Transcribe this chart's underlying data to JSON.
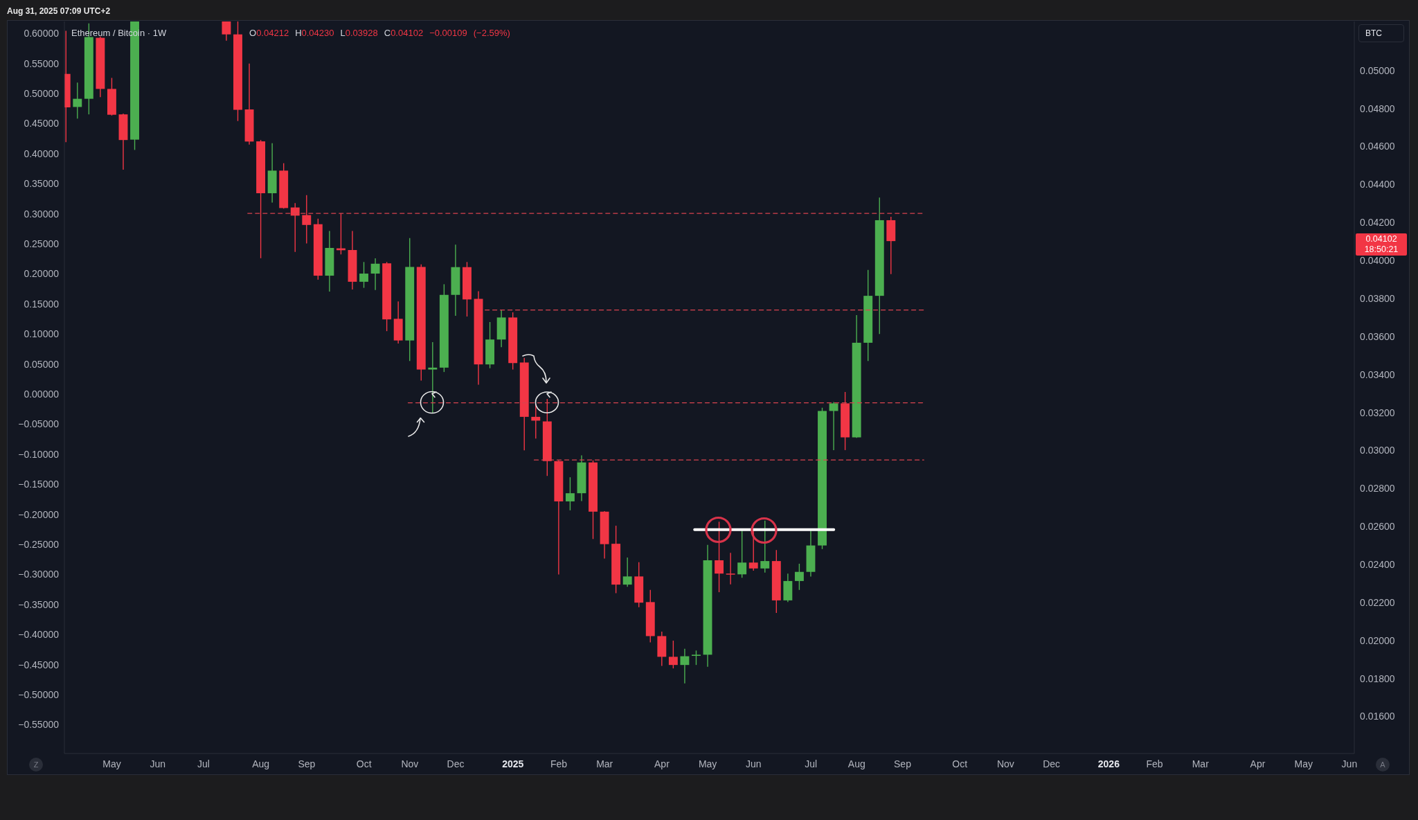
{
  "chart_data": {
    "type": "candlestick",
    "title": "Ethereum / Bitcoin · 1W",
    "y2label": "BTC",
    "annotations": [
      "Aug 31, 2025 07:09 UTC+2",
      "O0.04212 H0.04230 L0.03928 C0.04102 −0.00109 (−2.59%)",
      "0.04102",
      "18:50:21",
      "Z",
      "A"
    ],
    "xlim": [
      "2024-04-07",
      "2026-06-04"
    ],
    "xticks": [
      {
        "value": "2024-05-06",
        "label": "May"
      },
      {
        "value": "2024-06-03",
        "label": "Jun"
      },
      {
        "value": "2024-07-01",
        "label": "Jul"
      },
      {
        "value": "2024-08-05",
        "label": "Aug"
      },
      {
        "value": "2024-09-02",
        "label": "Sep"
      },
      {
        "value": "2024-10-07",
        "label": "Oct"
      },
      {
        "value": "2024-11-04",
        "label": "Nov"
      },
      {
        "value": "2024-12-02",
        "label": "Dec"
      },
      {
        "value": "2025-01-06",
        "label": "2025"
      },
      {
        "value": "2025-02-03",
        "label": "Feb"
      },
      {
        "value": "2025-03-03",
        "label": "Mar"
      },
      {
        "value": "2025-04-07",
        "label": "Apr"
      },
      {
        "value": "2025-05-05",
        "label": "May"
      },
      {
        "value": "2025-06-02",
        "label": "Jun"
      },
      {
        "value": "2025-07-07",
        "label": "Jul"
      },
      {
        "value": "2025-08-04",
        "label": "Aug"
      },
      {
        "value": "2025-09-01",
        "label": "Sep"
      },
      {
        "value": "2025-10-06",
        "label": "Oct"
      },
      {
        "value": "2025-11-03",
        "label": "Nov"
      },
      {
        "value": "2025-12-01",
        "label": "Dec"
      },
      {
        "value": "2026-01-05",
        "label": "2026"
      },
      {
        "value": "2026-02-02",
        "label": "Feb"
      },
      {
        "value": "2026-03-02",
        "label": "Mar"
      },
      {
        "value": "2026-04-06",
        "label": "Apr"
      },
      {
        "value": "2026-05-04",
        "label": "May"
      },
      {
        "value": "2026-06-01",
        "label": "Jun"
      }
    ],
    "ylim": [
      -0.598,
      0.62
    ],
    "yticks": [
      {
        "value": -0.55,
        "label": "−0.55000"
      },
      {
        "value": -0.5,
        "label": "−0.50000"
      },
      {
        "value": -0.45,
        "label": "−0.45000"
      },
      {
        "value": -0.4,
        "label": "−0.40000"
      },
      {
        "value": -0.35,
        "label": "−0.35000"
      },
      {
        "value": -0.3,
        "label": "−0.30000"
      },
      {
        "value": -0.25,
        "label": "−0.25000"
      },
      {
        "value": -0.2,
        "label": "−0.20000"
      },
      {
        "value": -0.15,
        "label": "−0.15000"
      },
      {
        "value": -0.1,
        "label": "−0.10000"
      },
      {
        "value": -0.05,
        "label": "−0.05000"
      },
      {
        "value": 0,
        "label": "0.00000"
      },
      {
        "value": 0.05,
        "label": "0.05000"
      },
      {
        "value": 0.1,
        "label": "0.10000"
      },
      {
        "value": 0.15,
        "label": "0.15000"
      },
      {
        "value": 0.2,
        "label": "0.20000"
      },
      {
        "value": 0.25,
        "label": "0.25000"
      },
      {
        "value": 0.3,
        "label": "0.30000"
      },
      {
        "value": 0.35,
        "label": "0.35000"
      },
      {
        "value": 0.4,
        "label": "0.40000"
      },
      {
        "value": 0.45,
        "label": "0.45000"
      },
      {
        "value": 0.5,
        "label": "0.50000"
      },
      {
        "value": 0.55,
        "label": "0.55000"
      },
      {
        "value": 0.6,
        "label": "0.60000"
      }
    ],
    "y2lim": [
      0.01405,
      0.05258
    ],
    "y2ticks": [
      {
        "value": 0.016,
        "label": "0.01600"
      },
      {
        "value": 0.018,
        "label": "0.01800"
      },
      {
        "value": 0.02,
        "label": "0.02000"
      },
      {
        "value": 0.022,
        "label": "0.02200"
      },
      {
        "value": 0.024,
        "label": "0.02400"
      },
      {
        "value": 0.026,
        "label": "0.02600"
      },
      {
        "value": 0.028,
        "label": "0.02800"
      },
      {
        "value": 0.03,
        "label": "0.03000"
      },
      {
        "value": 0.032,
        "label": "0.03200"
      },
      {
        "value": 0.034,
        "label": "0.03400"
      },
      {
        "value": 0.036,
        "label": "0.03600"
      },
      {
        "value": 0.038,
        "label": "0.03800"
      },
      {
        "value": 0.04,
        "label": "0.04000"
      },
      {
        "value": 0.042,
        "label": "0.04200"
      },
      {
        "value": 0.044,
        "label": "0.04400"
      },
      {
        "value": 0.046,
        "label": "0.04600"
      },
      {
        "value": 0.048,
        "label": "0.04800"
      },
      {
        "value": 0.05,
        "label": "0.05000"
      }
    ],
    "series": [
      {
        "type": "line",
        "axis": "y2",
        "x": [
          "2024-07-28",
          "2025-09-14"
        ],
        "values": [
          0.04248,
          0.04248
        ],
        "color": "#d9434f",
        "line_style": "dashed"
      },
      {
        "type": "line",
        "axis": "y2",
        "x": [
          "2024-12-20",
          "2025-09-14"
        ],
        "values": [
          0.03739,
          0.03739
        ],
        "color": "#d9434f",
        "line_style": "dashed"
      },
      {
        "type": "line",
        "axis": "y2",
        "x": [
          "2024-11-03",
          "2025-09-14"
        ],
        "values": [
          0.03251,
          0.03251
        ],
        "color": "#d9434f",
        "line_style": "dashed"
      },
      {
        "type": "line",
        "axis": "y2",
        "x": [
          "2025-01-19",
          "2025-09-14"
        ],
        "values": [
          0.0295,
          0.0295
        ],
        "color": "#d9434f",
        "line_style": "dashed"
      },
      {
        "type": "line",
        "axis": "y2",
        "x": [
          "2025-04-27",
          "2025-07-21"
        ],
        "values": [
          0.02583,
          0.02583
        ],
        "color": "#ffffff",
        "line_style": "solid"
      },
      {
        "axis": "y2",
        "x": [
          "2024-04-08",
          "2024-04-15",
          "2024-04-22",
          "2024-04-29",
          "2024-05-06",
          "2024-05-13",
          "2024-05-20",
          "2024-07-15",
          "2024-07-22",
          "2024-07-29",
          "2024-08-05",
          "2024-08-12",
          "2024-08-19",
          "2024-08-26",
          "2024-09-02",
          "2024-09-09",
          "2024-09-16",
          "2024-09-23",
          "2024-09-30",
          "2024-10-07",
          "2024-10-14",
          "2024-10-21",
          "2024-10-28",
          "2024-11-04",
          "2024-11-11",
          "2024-11-18",
          "2024-11-25",
          "2024-12-02",
          "2024-12-09",
          "2024-12-16",
          "2024-12-23",
          "2024-12-30",
          "2025-01-06",
          "2025-01-13",
          "2025-01-20",
          "2025-01-27",
          "2025-02-03",
          "2025-02-10",
          "2025-02-17",
          "2025-02-24",
          "2025-03-03",
          "2025-03-10",
          "2025-03-17",
          "2025-03-24",
          "2025-03-31",
          "2025-04-07",
          "2025-04-14",
          "2025-04-21",
          "2025-04-28",
          "2025-05-05",
          "2025-05-12",
          "2025-05-19",
          "2025-05-26",
          "2025-06-02",
          "2025-06-09",
          "2025-06-16",
          "2025-06-23",
          "2025-06-30",
          "2025-07-07",
          "2025-07-14",
          "2025-07-21",
          "2025-07-28",
          "2025-08-04",
          "2025-08-11",
          "2025-08-18",
          "2025-08-25"
        ],
        "ohlc": [
          [
            0.04982,
            0.05209,
            0.04623,
            0.04806
          ],
          [
            0.04808,
            0.04936,
            0.04747,
            0.04851
          ],
          [
            0.04851,
            0.05248,
            0.04769,
            0.05176
          ],
          [
            0.05172,
            0.05179,
            0.0486,
            0.04903
          ],
          [
            0.04903,
            0.04961,
            0.04763,
            0.04767
          ],
          [
            0.04769,
            0.04773,
            0.04478,
            0.04634
          ],
          [
            0.04636,
            0.05258,
            0.04582,
            0.05258
          ],
          [
            0.05258,
            0.05258,
            0.05157,
            0.0519
          ],
          [
            0.0519,
            0.05258,
            0.04734,
            0.04793
          ],
          [
            0.04795,
            0.05037,
            0.0461,
            0.04626
          ],
          [
            0.04627,
            0.04634,
            0.04012,
            0.04354
          ],
          [
            0.04354,
            0.04617,
            0.04305,
            0.04473
          ],
          [
            0.04473,
            0.04512,
            0.04273,
            0.04276
          ],
          [
            0.04279,
            0.04302,
            0.04045,
            0.04236
          ],
          [
            0.04239,
            0.04344,
            0.0409,
            0.04187
          ],
          [
            0.04191,
            0.0422,
            0.03899,
            0.0392
          ],
          [
            0.0392,
            0.04155,
            0.03836,
            0.04066
          ],
          [
            0.04064,
            0.04248,
            0.04032,
            0.04054
          ],
          [
            0.04055,
            0.04155,
            0.03847,
            0.03888
          ],
          [
            0.03888,
            0.03992,
            0.03856,
            0.03931
          ],
          [
            0.03931,
            0.04011,
            0.03845,
            0.03983
          ],
          [
            0.03985,
            0.03992,
            0.03628,
            0.0369
          ],
          [
            0.03693,
            0.03784,
            0.03563,
            0.03579
          ],
          [
            0.03579,
            0.04118,
            0.03471,
            0.03966
          ],
          [
            0.03966,
            0.03979,
            0.03368,
            0.03426
          ],
          [
            0.03426,
            0.0357,
            0.03197,
            0.03436
          ],
          [
            0.03436,
            0.03875,
            0.03413,
            0.03819
          ],
          [
            0.03819,
            0.04083,
            0.03709,
            0.03965
          ],
          [
            0.03965,
            0.03992,
            0.03705,
            0.03795
          ],
          [
            0.03798,
            0.03838,
            0.03346,
            0.03453
          ],
          [
            0.03453,
            0.03676,
            0.03433,
            0.03584
          ],
          [
            0.03584,
            0.03739,
            0.03544,
            0.037
          ],
          [
            0.037,
            0.03727,
            0.03426,
            0.0346
          ],
          [
            0.03463,
            0.03487,
            0.03001,
            0.03177
          ],
          [
            0.03177,
            0.03244,
            0.03063,
            0.03157
          ],
          [
            0.03153,
            0.03271,
            0.02866,
            0.02944
          ],
          [
            0.02944,
            0.02948,
            0.02347,
            0.02732
          ],
          [
            0.02732,
            0.02859,
            0.02685,
            0.02775
          ],
          [
            0.02775,
            0.02974,
            0.02734,
            0.02937
          ],
          [
            0.02937,
            0.02948,
            0.02534,
            0.02678
          ],
          [
            0.02678,
            0.02681,
            0.02431,
            0.02507
          ],
          [
            0.02509,
            0.02604,
            0.02249,
            0.02294
          ],
          [
            0.02294,
            0.02437,
            0.02283,
            0.02337
          ],
          [
            0.02337,
            0.02412,
            0.02175,
            0.02199
          ],
          [
            0.02202,
            0.02266,
            0.0199,
            0.02023
          ],
          [
            0.02023,
            0.02047,
            0.01866,
            0.01914
          ],
          [
            0.01914,
            0.01999,
            0.01853,
            0.01871
          ],
          [
            0.01871,
            0.01956,
            0.01774,
            0.01917
          ],
          [
            0.01919,
            0.01947,
            0.01871,
            0.01925
          ],
          [
            0.01925,
            0.02503,
            0.01862,
            0.02422
          ],
          [
            0.02422,
            0.02625,
            0.02254,
            0.02352
          ],
          [
            0.02352,
            0.02461,
            0.02295,
            0.02348
          ],
          [
            0.02348,
            0.02582,
            0.0233,
            0.0241
          ],
          [
            0.0241,
            0.02578,
            0.02367,
            0.02379
          ],
          [
            0.02379,
            0.02631,
            0.02357,
            0.02418
          ],
          [
            0.02418,
            0.02476,
            0.02145,
            0.02211
          ],
          [
            0.02211,
            0.02352,
            0.02202,
            0.02313
          ],
          [
            0.02313,
            0.02404,
            0.02266,
            0.02361
          ],
          [
            0.02361,
            0.02578,
            0.02336,
            0.025
          ],
          [
            0.025,
            0.03225,
            0.02481,
            0.03208
          ],
          [
            0.03208,
            0.03255,
            0.03002,
            0.03248
          ],
          [
            0.03248,
            0.03308,
            0.03002,
            0.03069
          ],
          [
            0.03069,
            0.03712,
            0.03066,
            0.03567
          ],
          [
            0.03567,
            0.0395,
            0.03471,
            0.03814
          ],
          [
            0.03814,
            0.04331,
            0.03613,
            0.04212
          ],
          [
            0.04212,
            0.0423,
            0.03928,
            0.04102
          ]
        ],
        "colors": [
          "#f23645",
          "#4caf50",
          "#4caf50",
          "#f23645",
          "#f23645",
          "#f23645",
          "#4caf50",
          "#f23645",
          "#f23645",
          "#f23645",
          "#f23645",
          "#4caf50",
          "#f23645",
          "#f23645",
          "#f23645",
          "#f23645",
          "#4caf50",
          "#f23645",
          "#f23645",
          "#4caf50",
          "#4caf50",
          "#f23645",
          "#f23645",
          "#4caf50",
          "#f23645",
          "#4caf50",
          "#4caf50",
          "#4caf50",
          "#f23645",
          "#f23645",
          "#4caf50",
          "#4caf50",
          "#f23645",
          "#f23645",
          "#f23645",
          "#f23645",
          "#f23645",
          "#4caf50",
          "#4caf50",
          "#f23645",
          "#f23645",
          "#f23645",
          "#4caf50",
          "#f23645",
          "#f23645",
          "#f23645",
          "#f23645",
          "#4caf50",
          "#4caf50",
          "#4caf50",
          "#f23645",
          "#f23645",
          "#4caf50",
          "#f23645",
          "#4caf50",
          "#f23645",
          "#4caf50",
          "#4caf50",
          "#4caf50",
          "#4caf50",
          "#4caf50",
          "#f23645",
          "#4caf50",
          "#4caf50",
          "#4caf50",
          "#f23645"
        ]
      }
    ]
  }
}
